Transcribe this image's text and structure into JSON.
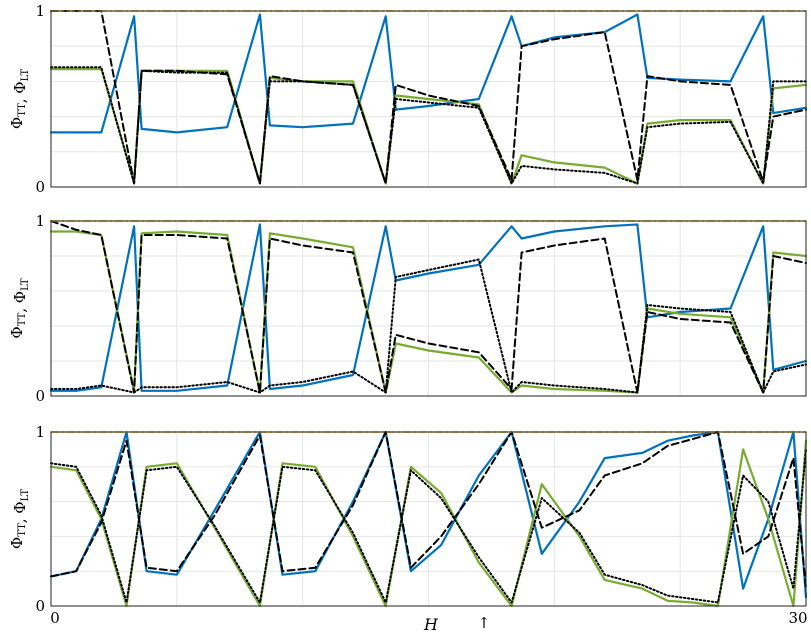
{
  "chart_data": [
    {
      "type": "line",
      "panel": "top",
      "ylabel": "Φ_TT, Φ_LT",
      "ylim": [
        0,
        1
      ],
      "xlim": [
        0,
        30
      ],
      "grid": true,
      "series": [
        {
          "style": "solid",
          "color": "#0072BD",
          "x": [
            0,
            1,
            2,
            3.3,
            3.6,
            5,
            7,
            8.3,
            8.7,
            10,
            12,
            13.3,
            13.7,
            15,
            17,
            18.3,
            18.7,
            20,
            22,
            23.3,
            23.7,
            25,
            27,
            28.3,
            28.7,
            30
          ],
          "y": [
            0.31,
            0.31,
            0.31,
            0.97,
            0.33,
            0.31,
            0.34,
            0.98,
            0.35,
            0.34,
            0.36,
            0.97,
            0.44,
            0.46,
            0.5,
            0.97,
            0.8,
            0.85,
            0.88,
            0.98,
            0.62,
            0.61,
            0.6,
            0.97,
            0.42,
            0.45
          ]
        },
        {
          "style": "solid",
          "color": "#77AC30",
          "x": [
            0,
            1,
            2,
            3.3,
            3.6,
            5,
            7,
            8.3,
            8.7,
            10,
            12,
            13.3,
            13.7,
            15,
            17,
            18.3,
            18.7,
            20,
            22,
            23.3,
            23.7,
            25,
            27,
            28.3,
            28.7,
            30
          ],
          "y": [
            0.67,
            0.67,
            0.67,
            0.03,
            0.66,
            0.66,
            0.66,
            0.02,
            0.62,
            0.6,
            0.6,
            0.02,
            0.52,
            0.5,
            0.47,
            0.02,
            0.18,
            0.14,
            0.11,
            0.02,
            0.36,
            0.38,
            0.38,
            0.02,
            0.56,
            0.58
          ]
        },
        {
          "style": "dashed",
          "color": "#000000",
          "x": [
            0,
            1,
            2,
            3.3,
            3.6,
            5,
            7,
            8.3,
            8.7,
            10,
            12,
            13.3,
            13.7,
            15,
            17,
            18.3,
            18.7,
            20,
            22,
            23.3,
            23.7,
            25,
            27,
            28.3,
            28.7,
            30
          ],
          "y": [
            1.0,
            1.0,
            1.0,
            0.02,
            0.66,
            0.66,
            0.64,
            0.02,
            0.63,
            0.6,
            0.58,
            0.02,
            0.58,
            0.52,
            0.46,
            0.04,
            0.8,
            0.84,
            0.88,
            0.04,
            0.63,
            0.6,
            0.58,
            0.03,
            0.4,
            0.44
          ]
        },
        {
          "style": "dotted",
          "color": "#000000",
          "x": [
            0,
            1,
            2,
            3.3,
            3.6,
            5,
            7,
            8.3,
            8.7,
            10,
            12,
            13.3,
            13.7,
            15,
            17,
            18.3,
            18.7,
            20,
            22,
            23.3,
            23.7,
            25,
            27,
            28.3,
            28.7,
            30
          ],
          "y": [
            0.68,
            0.68,
            0.68,
            0.02,
            0.66,
            0.65,
            0.65,
            0.02,
            0.6,
            0.6,
            0.58,
            0.02,
            0.5,
            0.48,
            0.45,
            0.02,
            0.12,
            0.1,
            0.08,
            0.02,
            0.34,
            0.36,
            0.37,
            0.02,
            0.6,
            0.6
          ]
        },
        {
          "style": "dashdot",
          "color": "#EDB120",
          "x": [
            0,
            30
          ],
          "y": [
            1.0,
            1.0
          ]
        }
      ]
    },
    {
      "type": "line",
      "panel": "middle",
      "ylabel": "Φ_TT, Φ_LT",
      "ylim": [
        0,
        1
      ],
      "xlim": [
        0,
        30
      ],
      "grid": true,
      "series": [
        {
          "style": "solid",
          "color": "#0072BD",
          "x": [
            0,
            1,
            2,
            3.3,
            3.6,
            5,
            7,
            8.3,
            8.7,
            10,
            12,
            13.3,
            13.7,
            15,
            17,
            18.3,
            18.7,
            20,
            22,
            23.3,
            23.7,
            25,
            27,
            28.3,
            28.7,
            30
          ],
          "y": [
            0.03,
            0.03,
            0.05,
            0.97,
            0.03,
            0.03,
            0.06,
            0.98,
            0.04,
            0.06,
            0.12,
            0.97,
            0.66,
            0.7,
            0.75,
            0.97,
            0.9,
            0.94,
            0.97,
            0.98,
            0.45,
            0.48,
            0.5,
            0.97,
            0.15,
            0.2
          ]
        },
        {
          "style": "solid",
          "color": "#77AC30",
          "x": [
            0,
            1,
            2,
            3.3,
            3.6,
            5,
            7,
            8.3,
            8.7,
            10,
            12,
            13.3,
            13.7,
            15,
            17,
            18.3,
            18.7,
            20,
            22,
            23.3,
            23.7,
            25,
            27,
            28.3,
            28.7,
            30
          ],
          "y": [
            0.94,
            0.94,
            0.92,
            0.03,
            0.93,
            0.94,
            0.92,
            0.02,
            0.93,
            0.9,
            0.85,
            0.02,
            0.3,
            0.26,
            0.22,
            0.02,
            0.06,
            0.04,
            0.03,
            0.02,
            0.5,
            0.47,
            0.45,
            0.02,
            0.82,
            0.8
          ]
        },
        {
          "style": "dashed",
          "color": "#000000",
          "x": [
            0,
            1,
            2,
            3.3,
            3.6,
            5,
            7,
            8.3,
            8.7,
            10,
            12,
            13.3,
            13.7,
            15,
            17,
            18.3,
            18.7,
            20,
            22,
            23.3,
            23.7,
            25,
            27,
            28.3,
            28.7,
            30
          ],
          "y": [
            1.0,
            0.95,
            0.92,
            0.02,
            0.92,
            0.92,
            0.9,
            0.02,
            0.9,
            0.86,
            0.82,
            0.02,
            0.35,
            0.3,
            0.25,
            0.04,
            0.82,
            0.86,
            0.9,
            0.02,
            0.48,
            0.44,
            0.42,
            0.02,
            0.8,
            0.76
          ]
        },
        {
          "style": "dotted",
          "color": "#000000",
          "x": [
            0,
            1,
            2,
            3.3,
            3.6,
            5,
            7,
            8.3,
            8.7,
            10,
            12,
            13.3,
            13.7,
            15,
            17,
            18.3,
            18.7,
            20,
            22,
            23.3,
            23.7,
            25,
            27,
            28.3,
            28.7,
            30
          ],
          "y": [
            0.04,
            0.04,
            0.06,
            0.02,
            0.05,
            0.05,
            0.08,
            0.02,
            0.06,
            0.08,
            0.14,
            0.02,
            0.68,
            0.72,
            0.78,
            0.02,
            0.08,
            0.06,
            0.04,
            0.02,
            0.52,
            0.5,
            0.48,
            0.02,
            0.14,
            0.18
          ]
        },
        {
          "style": "dashdot",
          "color": "#EDB120",
          "x": [
            0,
            30
          ],
          "y": [
            1.0,
            1.0
          ]
        }
      ]
    },
    {
      "type": "line",
      "panel": "bottom",
      "ylabel": "Φ_TT, Φ_LT",
      "xlabel": "H",
      "ylim": [
        0,
        1
      ],
      "xlim": [
        0,
        30
      ],
      "grid": true,
      "xtick_labels": [
        "0",
        "30"
      ],
      "annotation": "↑",
      "series": [
        {
          "style": "solid",
          "color": "#0072BD",
          "x": [
            0,
            1,
            2,
            3.0,
            3.8,
            5,
            6.5,
            8.3,
            9.2,
            10.5,
            12,
            13.3,
            14.3,
            15.5,
            17,
            18.3,
            19.5,
            21,
            22,
            23.5,
            24.5,
            25.5,
            26.5,
            27.5,
            28.5,
            29.5,
            30
          ],
          "y": [
            0.17,
            0.2,
            0.5,
            1.0,
            0.2,
            0.18,
            0.55,
            1.0,
            0.18,
            0.2,
            0.6,
            1.0,
            0.2,
            0.35,
            0.75,
            1.0,
            0.3,
            0.6,
            0.85,
            0.88,
            0.95,
            0.98,
            1.0,
            0.1,
            0.5,
            1.0,
            0.05
          ]
        },
        {
          "style": "solid",
          "color": "#77AC30",
          "x": [
            0,
            1,
            2,
            3.0,
            3.8,
            5,
            6.5,
            8.3,
            9.2,
            10.5,
            12,
            13.3,
            14.3,
            15.5,
            17,
            18.3,
            19.5,
            21,
            22,
            23.5,
            24.5,
            25.5,
            26.5,
            27.5,
            28.5,
            29.5,
            30
          ],
          "y": [
            0.8,
            0.78,
            0.5,
            0.0,
            0.8,
            0.82,
            0.45,
            0.0,
            0.82,
            0.8,
            0.4,
            0.0,
            0.8,
            0.65,
            0.25,
            0.0,
            0.7,
            0.4,
            0.15,
            0.1,
            0.03,
            0.02,
            0.0,
            0.9,
            0.5,
            0.0,
            0.95
          ]
        },
        {
          "style": "dashed",
          "color": "#000000",
          "x": [
            0,
            1,
            2,
            3.0,
            3.8,
            5,
            6.5,
            8.3,
            9.2,
            10.5,
            12,
            13.3,
            14.3,
            15.5,
            17,
            18.3,
            19.5,
            21,
            22,
            23.5,
            24.5,
            25.5,
            26.5,
            27.5,
            28.5,
            29.5,
            30
          ],
          "y": [
            0.17,
            0.2,
            0.48,
            0.95,
            0.22,
            0.2,
            0.52,
            0.98,
            0.2,
            0.22,
            0.58,
            1.0,
            0.22,
            0.4,
            0.7,
            1.0,
            0.45,
            0.55,
            0.75,
            0.82,
            0.92,
            0.96,
            1.0,
            0.3,
            0.4,
            0.85,
            0.1
          ]
        },
        {
          "style": "dotted",
          "color": "#000000",
          "x": [
            0,
            1,
            2,
            3.0,
            3.8,
            5,
            6.5,
            8.3,
            9.2,
            10.5,
            12,
            13.3,
            14.3,
            15.5,
            17,
            18.3,
            19.5,
            21,
            22,
            23.5,
            24.5,
            25.5,
            26.5,
            27.5,
            28.5,
            29.5,
            30
          ],
          "y": [
            0.82,
            0.8,
            0.52,
            0.02,
            0.78,
            0.8,
            0.46,
            0.02,
            0.8,
            0.78,
            0.42,
            0.02,
            0.78,
            0.62,
            0.28,
            0.02,
            0.62,
            0.42,
            0.18,
            0.12,
            0.06,
            0.04,
            0.02,
            0.75,
            0.6,
            0.1,
            0.9
          ]
        },
        {
          "style": "dashdot",
          "color": "#EDB120",
          "x": [
            0,
            30
          ],
          "y": [
            1.0,
            1.0
          ]
        }
      ]
    }
  ]
}
